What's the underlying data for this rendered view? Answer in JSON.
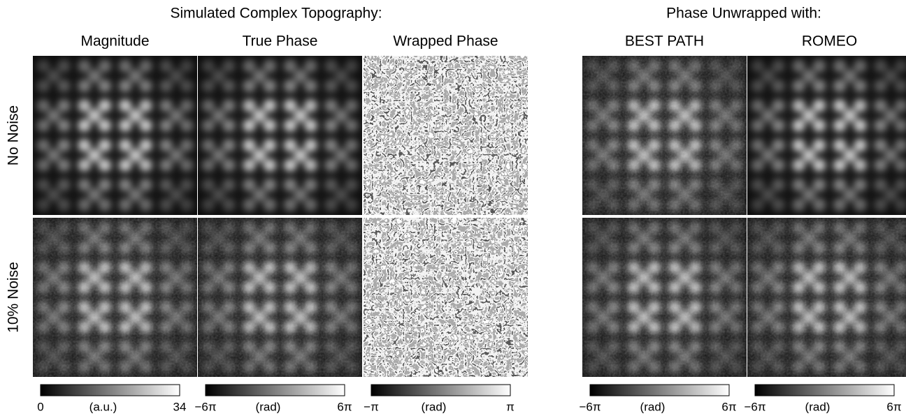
{
  "header": {
    "left_title": "Simulated Complex Topography:",
    "right_title": "Phase Unwrapped with:"
  },
  "columns": [
    {
      "label": "Magnitude",
      "colorbar": {
        "min": "0",
        "unit": "(a.u.)",
        "max": "34"
      }
    },
    {
      "label": "True Phase",
      "colorbar": {
        "min": "−6π",
        "unit": "(rad)",
        "max": "6π"
      }
    },
    {
      "label": "Wrapped Phase",
      "colorbar": {
        "min": "−π",
        "unit": "(rad)",
        "max": "π"
      }
    },
    {
      "label": "BEST PATH",
      "colorbar": {
        "min": "−6π",
        "unit": "(rad)",
        "max": "6π"
      }
    },
    {
      "label": "ROMEO",
      "colorbar": {
        "min": "−6π",
        "unit": "(rad)",
        "max": "6π"
      }
    }
  ],
  "rows": [
    {
      "label": "No Noise"
    },
    {
      "label": "10% Noise"
    }
  ]
}
